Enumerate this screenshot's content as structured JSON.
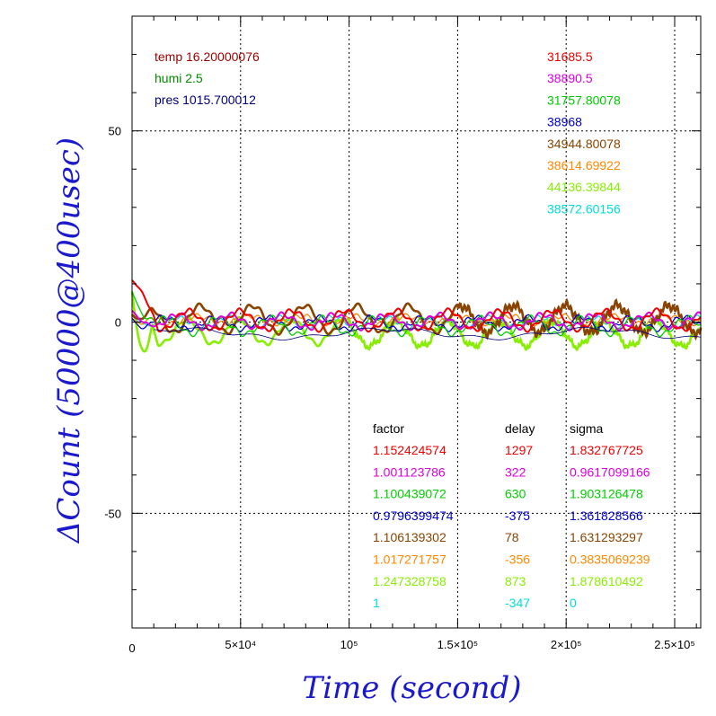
{
  "chart_data": {
    "type": "line",
    "xlabel": "Time (second)",
    "ylabel": "ΔCount (50000@400usec)",
    "xlim": [
      0,
      262000
    ],
    "ylim": [
      -80,
      80
    ],
    "grid": true,
    "x_ticks": [
      {
        "value": 0,
        "label": "0"
      },
      {
        "value": 50000,
        "label": "5×10⁴"
      },
      {
        "value": 100000,
        "label": "10⁵"
      },
      {
        "value": 150000,
        "label": "1.5×10⁵"
      },
      {
        "value": 200000,
        "label": "2×10⁵"
      },
      {
        "value": 250000,
        "label": "2.5×10⁵"
      }
    ],
    "y_ticks": [
      {
        "value": 50,
        "label": "50"
      },
      {
        "value": 0,
        "label": "0"
      },
      {
        "value": -50,
        "label": "-50"
      }
    ],
    "env": [
      {
        "text": "temp 16.20000076",
        "color": "#990000"
      },
      {
        "text": "humi 2.5",
        "color": "#008800"
      },
      {
        "text": "pres 1015.700012",
        "color": "#000077"
      }
    ],
    "legend_headers": [
      "factor",
      "delay",
      "sigma"
    ],
    "series": [
      {
        "mean": "31685.5",
        "factor": "1.152424574",
        "delay": "1297",
        "sigma": "1.832767725",
        "color": "#ee0000"
      },
      {
        "mean": "38890.5",
        "factor": "1.001123786",
        "delay": "322",
        "sigma": "0.9617099166",
        "color": "#dd00dd"
      },
      {
        "mean": "31757.80078",
        "factor": "1.100439072",
        "delay": "630",
        "sigma": "1.903126478",
        "color": "#00cc00"
      },
      {
        "mean": "38968",
        "factor": "0.9796399474",
        "delay": "-375",
        "sigma": "1.361828566",
        "color": "#0000cc"
      },
      {
        "mean": "34944.80078",
        "factor": "1.106139302",
        "delay": "78",
        "sigma": "1.631293297",
        "color": "#884400"
      },
      {
        "mean": "38614.69922",
        "factor": "1.017271757",
        "delay": "-356",
        "sigma": "0.3835069239",
        "color": "#ff8800"
      },
      {
        "mean": "44136.39844",
        "factor": "1.247328758",
        "delay": "873",
        "sigma": "1.878610492",
        "color": "#88ee00"
      },
      {
        "mean": "38572.60156",
        "factor": "1",
        "delay": "-347",
        "sigma": "0",
        "color": "#00dddd"
      }
    ]
  }
}
